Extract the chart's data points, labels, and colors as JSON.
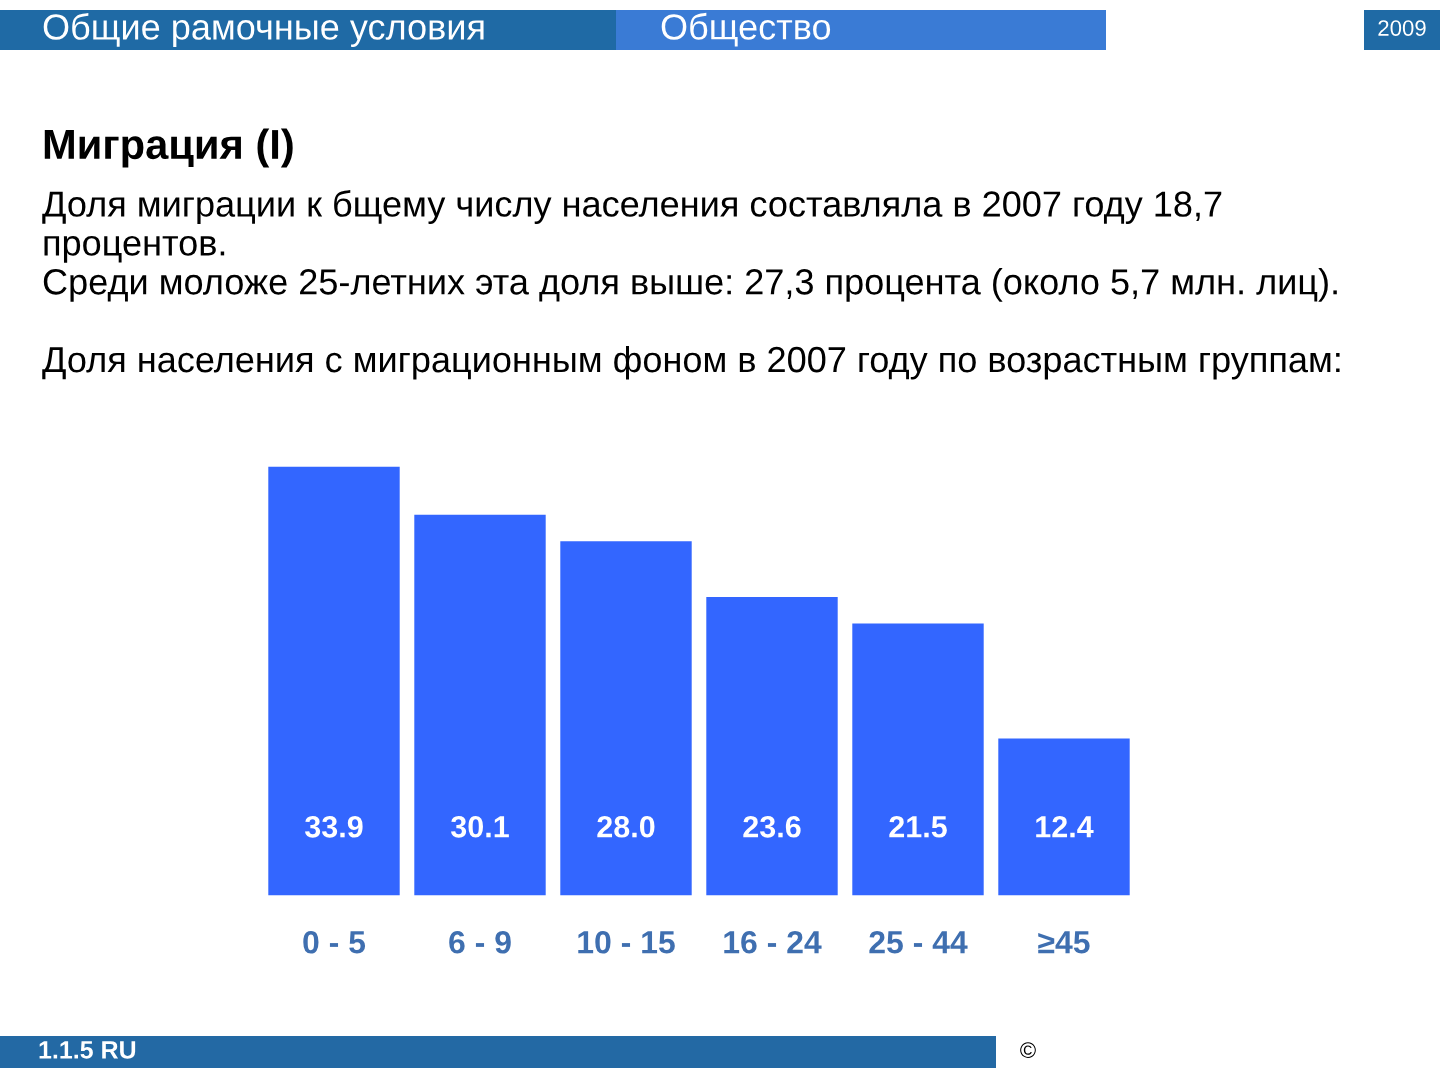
{
  "chart_data": {
    "type": "bar",
    "title": "Миграция (I)",
    "subtitle": "Доля миграции к бщему числу населения составляла в 2007 году 18,7\nпроцентов.\nСреди моложе 25-летних эта доля выше: 27,3 процента (около 5,7 млн. лиц).\n\nДоля населения с миграционным фоном в 2007 году по возрастным группам:",
    "categories": [
      "0 - 5",
      "6 - 9",
      "10 - 15",
      "16 - 24",
      "25 - 44",
      "≥45"
    ],
    "values": [
      33.9,
      30.1,
      28.0,
      23.6,
      21.5,
      12.4
    ],
    "value_labels": [
      "33.9",
      "30.1",
      "28.0",
      "23.6",
      "21.5",
      "12.4"
    ],
    "color": "#3366ff",
    "annotations": [
      "Общие рамочные условия",
      "Общество",
      "2009",
      "1.1.5 RU",
      "©"
    ]
  }
}
